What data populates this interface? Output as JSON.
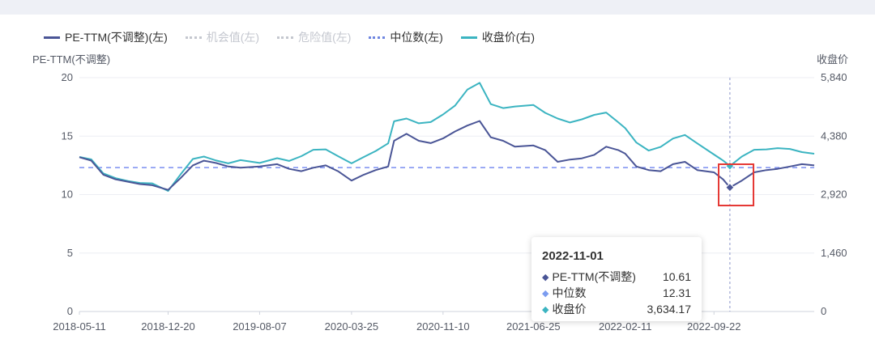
{
  "chart_data": {
    "type": "line",
    "legend": [
      {
        "name": "PE-TTM(不调整)(左)",
        "color": "#4a5596",
        "style": "solid",
        "active": true
      },
      {
        "name": "机会值(左)",
        "color": "#c4c7cf",
        "style": "dotted",
        "active": false
      },
      {
        "name": "危险值(左)",
        "color": "#c4c7cf",
        "style": "dotted",
        "active": false
      },
      {
        "name": "中位数(左)",
        "color": "#6f86e0",
        "style": "dotted",
        "active": true
      },
      {
        "name": "收盘价(右)",
        "color": "#3bb4c1",
        "style": "solid",
        "active": true
      }
    ],
    "y_left": {
      "title": "PE-TTM(不调整)",
      "ticks": [
        "20",
        "15",
        "10",
        "5",
        "0"
      ],
      "range": [
        0,
        20
      ]
    },
    "y_right": {
      "title": "收盘价",
      "ticks": [
        "5,840",
        "4,380",
        "2,920",
        "1,460",
        "0"
      ],
      "range": [
        0,
        5840
      ]
    },
    "x_ticks": [
      "2018-05-11",
      "2018-12-20",
      "2019-08-07",
      "2020-03-25",
      "2020-11-10",
      "2021-06-25",
      "2022-02-11",
      "2022-09-22"
    ],
    "x_range": [
      "2018-05-11",
      "2023-06-01"
    ],
    "median": 12.31,
    "series": [
      {
        "name": "PE-TTM(不调整)",
        "axis": "left",
        "color": "#4a5596",
        "x": [
          "2018-05-11",
          "2018-06-10",
          "2018-07-10",
          "2018-08-10",
          "2018-09-10",
          "2018-10-10",
          "2018-11-10",
          "2018-12-20",
          "2019-01-20",
          "2019-02-20",
          "2019-03-20",
          "2019-04-20",
          "2019-05-20",
          "2019-06-20",
          "2019-08-07",
          "2019-09-20",
          "2019-10-20",
          "2019-11-20",
          "2019-12-20",
          "2020-01-20",
          "2020-02-20",
          "2020-03-25",
          "2020-04-25",
          "2020-05-25",
          "2020-06-25",
          "2020-07-10",
          "2020-08-10",
          "2020-09-10",
          "2020-10-10",
          "2020-11-10",
          "2020-12-10",
          "2021-01-10",
          "2021-02-10",
          "2021-03-10",
          "2021-04-10",
          "2021-05-10",
          "2021-06-25",
          "2021-07-25",
          "2021-08-25",
          "2021-09-25",
          "2021-10-25",
          "2021-11-25",
          "2021-12-25",
          "2022-01-25",
          "2022-02-11",
          "2022-03-11",
          "2022-04-11",
          "2022-05-11",
          "2022-06-11",
          "2022-07-11",
          "2022-08-11",
          "2022-09-22",
          "2022-10-15",
          "2022-11-01",
          "2022-12-01",
          "2023-01-01",
          "2023-02-01",
          "2023-03-01",
          "2023-04-01",
          "2023-05-01",
          "2023-06-01"
        ],
        "values": [
          13.2,
          12.9,
          11.7,
          11.3,
          11.1,
          10.9,
          10.8,
          10.4,
          11.4,
          12.5,
          12.9,
          12.7,
          12.4,
          12.3,
          12.4,
          12.6,
          12.2,
          12.0,
          12.3,
          12.5,
          12.0,
          11.2,
          11.7,
          12.1,
          12.4,
          14.6,
          15.2,
          14.6,
          14.4,
          14.8,
          15.4,
          15.9,
          16.3,
          14.9,
          14.6,
          14.1,
          14.2,
          13.8,
          12.8,
          13.0,
          13.1,
          13.4,
          14.1,
          13.8,
          13.5,
          12.4,
          12.1,
          12.0,
          12.6,
          12.8,
          12.1,
          11.9,
          11.3,
          10.61,
          11.2,
          11.9,
          12.1,
          12.2,
          12.4,
          12.6,
          12.5
        ]
      },
      {
        "name": "收盘价",
        "axis": "right",
        "color": "#3bb4c1",
        "x": [
          "2018-05-11",
          "2018-06-10",
          "2018-07-10",
          "2018-08-10",
          "2018-09-10",
          "2018-10-10",
          "2018-11-10",
          "2018-12-20",
          "2019-01-20",
          "2019-02-20",
          "2019-03-20",
          "2019-04-20",
          "2019-05-20",
          "2019-06-20",
          "2019-08-07",
          "2019-09-20",
          "2019-10-20",
          "2019-11-20",
          "2019-12-20",
          "2020-01-20",
          "2020-02-20",
          "2020-03-25",
          "2020-04-25",
          "2020-05-25",
          "2020-06-25",
          "2020-07-10",
          "2020-08-10",
          "2020-09-10",
          "2020-10-10",
          "2020-11-10",
          "2020-12-10",
          "2021-01-10",
          "2021-02-10",
          "2021-03-10",
          "2021-04-10",
          "2021-05-10",
          "2021-06-25",
          "2021-07-25",
          "2021-08-25",
          "2021-09-25",
          "2021-10-25",
          "2021-11-25",
          "2021-12-25",
          "2022-01-25",
          "2022-02-11",
          "2022-03-11",
          "2022-04-11",
          "2022-05-11",
          "2022-06-11",
          "2022-07-11",
          "2022-08-11",
          "2022-09-22",
          "2022-10-15",
          "2022-11-01",
          "2022-12-01",
          "2023-01-01",
          "2023-02-01",
          "2023-03-01",
          "2023-04-01",
          "2023-05-01",
          "2023-06-01"
        ],
        "values": [
          3860,
          3800,
          3450,
          3330,
          3260,
          3210,
          3200,
          3010,
          3420,
          3810,
          3870,
          3770,
          3700,
          3780,
          3710,
          3830,
          3760,
          3880,
          4040,
          4050,
          3880,
          3700,
          3860,
          4010,
          4200,
          4750,
          4820,
          4700,
          4730,
          4920,
          5140,
          5540,
          5710,
          5180,
          5080,
          5120,
          5160,
          4960,
          4820,
          4720,
          4800,
          4910,
          4970,
          4720,
          4580,
          4220,
          4020,
          4110,
          4320,
          4410,
          4200,
          3920,
          3770,
          3634.17,
          3870,
          4040,
          4050,
          4080,
          4060,
          3980,
          3940
        ]
      }
    ],
    "highlight": {
      "date": "2022-11-01",
      "rows": [
        {
          "label": "PE-TTM(不调整)",
          "value": "10.61",
          "color": "#4a5596"
        },
        {
          "label": "中位数",
          "value": "12.31",
          "color": "#7b9cf0"
        },
        {
          "label": "收盘价",
          "value": "3,634.17",
          "color": "#3bb4c1"
        }
      ]
    }
  }
}
